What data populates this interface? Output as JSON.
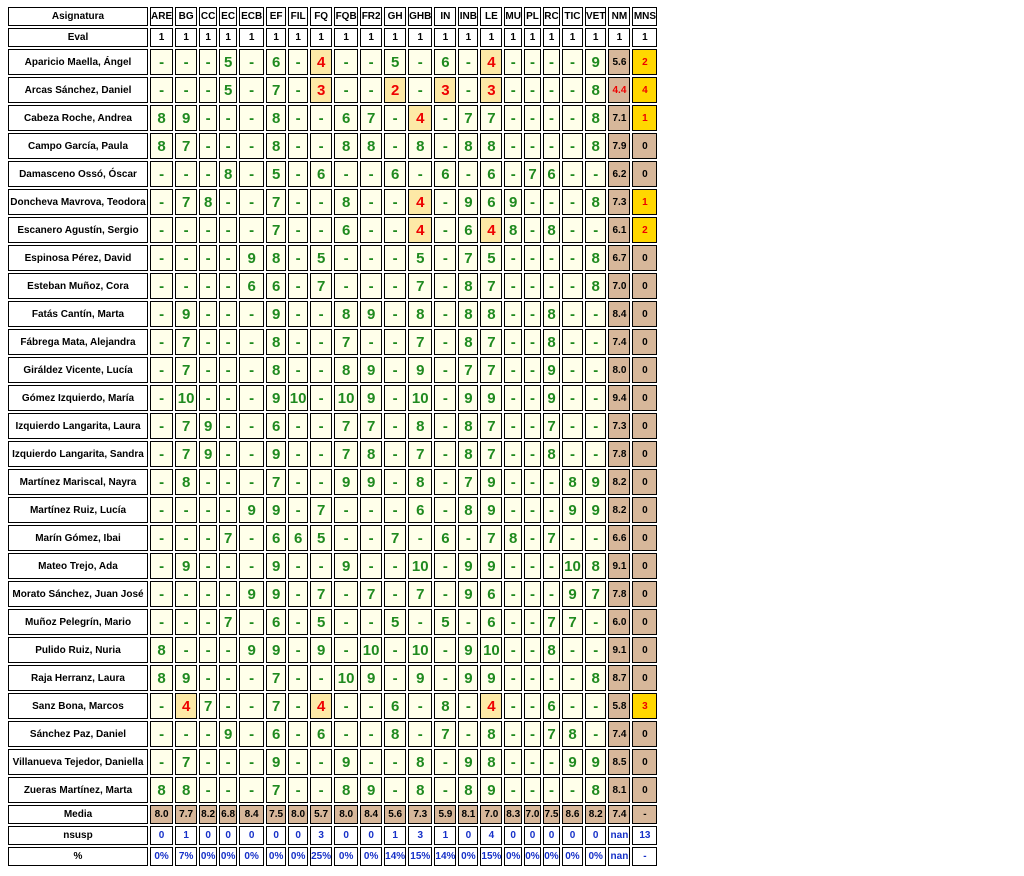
{
  "table": {
    "header_label": "Asignatura",
    "subjects": [
      "ARE",
      "BG",
      "CC",
      "EC",
      "ECB",
      "EF",
      "FIL",
      "FQ",
      "FQB",
      "FR2",
      "GH",
      "GHB",
      "IN",
      "INB",
      "LE",
      "MU",
      "PL",
      "RC",
      "TIC",
      "VET"
    ],
    "summary_headers": [
      "NM",
      "MNS"
    ],
    "eval_label": "Eval",
    "eval_values": [
      "1",
      "1",
      "1",
      "1",
      "1",
      "1",
      "1",
      "1",
      "1",
      "1",
      "1",
      "1",
      "1",
      "1",
      "1",
      "1",
      "1",
      "1",
      "1",
      "1",
      "1",
      "1"
    ],
    "students": [
      {
        "name": "Aparicio Maella, Ángel",
        "grades": [
          "-",
          "-",
          "-",
          "5",
          "-",
          "6",
          "-",
          "4",
          "-",
          "-",
          "5",
          "-",
          "6",
          "-",
          "4",
          "-",
          "-",
          "-",
          "-",
          "9"
        ],
        "nm": "5.6",
        "mns": "2"
      },
      {
        "name": "Arcas Sánchez, Daniel",
        "grades": [
          "-",
          "-",
          "-",
          "5",
          "-",
          "7",
          "-",
          "3",
          "-",
          "-",
          "2",
          "-",
          "3",
          "-",
          "3",
          "-",
          "-",
          "-",
          "-",
          "8"
        ],
        "nm": "4.4",
        "mns": "4"
      },
      {
        "name": "Cabeza Roche, Andrea",
        "grades": [
          "8",
          "9",
          "-",
          "-",
          "-",
          "8",
          "-",
          "-",
          "6",
          "7",
          "-",
          "4",
          "-",
          "7",
          "7",
          "-",
          "-",
          "-",
          "-",
          "8"
        ],
        "nm": "7.1",
        "mns": "1"
      },
      {
        "name": "Campo García, Paula",
        "grades": [
          "8",
          "7",
          "-",
          "-",
          "-",
          "8",
          "-",
          "-",
          "8",
          "8",
          "-",
          "8",
          "-",
          "8",
          "8",
          "-",
          "-",
          "-",
          "-",
          "8"
        ],
        "nm": "7.9",
        "mns": "0"
      },
      {
        "name": "Damasceno Ossó, Óscar",
        "grades": [
          "-",
          "-",
          "-",
          "8",
          "-",
          "5",
          "-",
          "6",
          "-",
          "-",
          "6",
          "-",
          "6",
          "-",
          "6",
          "-",
          "7",
          "6",
          "-",
          "-"
        ],
        "nm": "6.2",
        "mns": "0"
      },
      {
        "name": "Doncheva Mavrova, Teodora",
        "grades": [
          "-",
          "7",
          "8",
          "-",
          "-",
          "7",
          "-",
          "-",
          "8",
          "-",
          "-",
          "4",
          "-",
          "9",
          "6",
          "9",
          "-",
          "-",
          "-",
          "8"
        ],
        "nm": "7.3",
        "mns": "1"
      },
      {
        "name": "Escanero Agustín, Sergio",
        "grades": [
          "-",
          "-",
          "-",
          "-",
          "-",
          "7",
          "-",
          "-",
          "6",
          "-",
          "-",
          "4",
          "-",
          "6",
          "4",
          "8",
          "-",
          "8",
          "-",
          "-"
        ],
        "nm": "6.1",
        "mns": "2"
      },
      {
        "name": "Espinosa Pérez, David",
        "grades": [
          "-",
          "-",
          "-",
          "-",
          "9",
          "8",
          "-",
          "5",
          "-",
          "-",
          "-",
          "5",
          "-",
          "7",
          "5",
          "-",
          "-",
          "-",
          "-",
          "8"
        ],
        "nm": "6.7",
        "mns": "0"
      },
      {
        "name": "Esteban Muñoz, Cora",
        "grades": [
          "-",
          "-",
          "-",
          "-",
          "6",
          "6",
          "-",
          "7",
          "-",
          "-",
          "-",
          "7",
          "-",
          "8",
          "7",
          "-",
          "-",
          "-",
          "-",
          "8"
        ],
        "nm": "7.0",
        "mns": "0"
      },
      {
        "name": "Fatás Cantín, Marta",
        "grades": [
          "-",
          "9",
          "-",
          "-",
          "-",
          "9",
          "-",
          "-",
          "8",
          "9",
          "-",
          "8",
          "-",
          "8",
          "8",
          "-",
          "-",
          "8",
          "-",
          "-"
        ],
        "nm": "8.4",
        "mns": "0"
      },
      {
        "name": "Fábrega Mata, Alejandra",
        "grades": [
          "-",
          "7",
          "-",
          "-",
          "-",
          "8",
          "-",
          "-",
          "7",
          "-",
          "-",
          "7",
          "-",
          "8",
          "7",
          "-",
          "-",
          "8",
          "-",
          "-"
        ],
        "nm": "7.4",
        "mns": "0"
      },
      {
        "name": "Giráldez Vicente, Lucía",
        "grades": [
          "-",
          "7",
          "-",
          "-",
          "-",
          "8",
          "-",
          "-",
          "8",
          "9",
          "-",
          "9",
          "-",
          "7",
          "7",
          "-",
          "-",
          "9",
          "-",
          "-"
        ],
        "nm": "8.0",
        "mns": "0"
      },
      {
        "name": "Gómez Izquierdo, María",
        "grades": [
          "-",
          "10",
          "-",
          "-",
          "-",
          "9",
          "10",
          "-",
          "10",
          "9",
          "-",
          "10",
          "-",
          "9",
          "9",
          "-",
          "-",
          "9",
          "-",
          "-"
        ],
        "nm": "9.4",
        "mns": "0"
      },
      {
        "name": "Izquierdo Langarita, Laura",
        "grades": [
          "-",
          "7",
          "9",
          "-",
          "-",
          "6",
          "-",
          "-",
          "7",
          "7",
          "-",
          "8",
          "-",
          "8",
          "7",
          "-",
          "-",
          "7",
          "-",
          "-"
        ],
        "nm": "7.3",
        "mns": "0"
      },
      {
        "name": "Izquierdo Langarita, Sandra",
        "grades": [
          "-",
          "7",
          "9",
          "-",
          "-",
          "9",
          "-",
          "-",
          "7",
          "8",
          "-",
          "7",
          "-",
          "8",
          "7",
          "-",
          "-",
          "8",
          "-",
          "-"
        ],
        "nm": "7.8",
        "mns": "0"
      },
      {
        "name": "Martínez Mariscal, Nayra",
        "grades": [
          "-",
          "8",
          "-",
          "-",
          "-",
          "7",
          "-",
          "-",
          "9",
          "9",
          "-",
          "8",
          "-",
          "7",
          "9",
          "-",
          "-",
          "-",
          "8",
          "9"
        ],
        "nm": "8.2",
        "mns": "0"
      },
      {
        "name": "Martínez Ruiz, Lucía",
        "grades": [
          "-",
          "-",
          "-",
          "-",
          "9",
          "9",
          "-",
          "7",
          "-",
          "-",
          "-",
          "6",
          "-",
          "8",
          "9",
          "-",
          "-",
          "-",
          "9",
          "9"
        ],
        "nm": "8.2",
        "mns": "0"
      },
      {
        "name": "Marín Gómez, Ibai",
        "grades": [
          "-",
          "-",
          "-",
          "7",
          "-",
          "6",
          "6",
          "5",
          "-",
          "-",
          "7",
          "-",
          "6",
          "-",
          "7",
          "8",
          "-",
          "7",
          "-",
          "-"
        ],
        "nm": "6.6",
        "mns": "0"
      },
      {
        "name": "Mateo Trejo, Ada",
        "grades": [
          "-",
          "9",
          "-",
          "-",
          "-",
          "9",
          "-",
          "-",
          "9",
          "-",
          "-",
          "10",
          "-",
          "9",
          "9",
          "-",
          "-",
          "-",
          "10",
          "8"
        ],
        "nm": "9.1",
        "mns": "0"
      },
      {
        "name": "Morato Sánchez, Juan José",
        "grades": [
          "-",
          "-",
          "-",
          "-",
          "9",
          "9",
          "-",
          "7",
          "-",
          "7",
          "-",
          "7",
          "-",
          "9",
          "6",
          "-",
          "-",
          "-",
          "9",
          "7"
        ],
        "nm": "7.8",
        "mns": "0"
      },
      {
        "name": "Muñoz Pelegrín, Mario",
        "grades": [
          "-",
          "-",
          "-",
          "7",
          "-",
          "6",
          "-",
          "5",
          "-",
          "-",
          "5",
          "-",
          "5",
          "-",
          "6",
          "-",
          "-",
          "7",
          "7",
          "-"
        ],
        "nm": "6.0",
        "mns": "0"
      },
      {
        "name": "Pulido Ruiz, Nuria",
        "grades": [
          "8",
          "-",
          "-",
          "-",
          "9",
          "9",
          "-",
          "9",
          "-",
          "10",
          "-",
          "10",
          "-",
          "9",
          "10",
          "-",
          "-",
          "8",
          "-",
          "-"
        ],
        "nm": "9.1",
        "mns": "0"
      },
      {
        "name": "Raja Herranz, Laura",
        "grades": [
          "8",
          "9",
          "-",
          "-",
          "-",
          "7",
          "-",
          "-",
          "10",
          "9",
          "-",
          "9",
          "-",
          "9",
          "9",
          "-",
          "-",
          "-",
          "-",
          "8"
        ],
        "nm": "8.7",
        "mns": "0"
      },
      {
        "name": "Sanz Bona, Marcos",
        "grades": [
          "-",
          "4",
          "7",
          "-",
          "-",
          "7",
          "-",
          "4",
          "-",
          "-",
          "6",
          "-",
          "8",
          "-",
          "4",
          "-",
          "-",
          "6",
          "-",
          "-"
        ],
        "nm": "5.8",
        "mns": "3"
      },
      {
        "name": "Sánchez Paz, Daniel",
        "grades": [
          "-",
          "-",
          "-",
          "9",
          "-",
          "6",
          "-",
          "6",
          "-",
          "-",
          "8",
          "-",
          "7",
          "-",
          "8",
          "-",
          "-",
          "7",
          "8",
          "-"
        ],
        "nm": "7.4",
        "mns": "0"
      },
      {
        "name": "Villanueva Tejedor, Daniella",
        "grades": [
          "-",
          "7",
          "-",
          "-",
          "-",
          "9",
          "-",
          "-",
          "9",
          "-",
          "-",
          "8",
          "-",
          "9",
          "8",
          "-",
          "-",
          "-",
          "9",
          "9"
        ],
        "nm": "8.5",
        "mns": "0"
      },
      {
        "name": "Zueras Martínez, Marta",
        "grades": [
          "8",
          "8",
          "-",
          "-",
          "-",
          "7",
          "-",
          "-",
          "8",
          "9",
          "-",
          "8",
          "-",
          "8",
          "9",
          "-",
          "-",
          "-",
          "-",
          "8"
        ],
        "nm": "8.1",
        "mns": "0"
      }
    ],
    "media_label": "Media",
    "media_values": [
      "8.0",
      "7.7",
      "8.2",
      "6.8",
      "8.4",
      "7.5",
      "8.0",
      "5.7",
      "8.0",
      "8.4",
      "5.6",
      "7.3",
      "5.9",
      "8.1",
      "7.0",
      "8.3",
      "7.0",
      "7.5",
      "8.6",
      "8.2",
      "7.4",
      "-"
    ],
    "nsusp_label": "nsusp",
    "nsusp_values": [
      "0",
      "1",
      "0",
      "0",
      "0",
      "0",
      "0",
      "3",
      "0",
      "0",
      "1",
      "3",
      "1",
      "0",
      "4",
      "0",
      "0",
      "0",
      "0",
      "0",
      "nan",
      "13"
    ],
    "pct_label": "%",
    "pct_values": [
      "0%",
      "7%",
      "0%",
      "0%",
      "0%",
      "0%",
      "0%",
      "25%",
      "0%",
      "0%",
      "14%",
      "15%",
      "14%",
      "0%",
      "15%",
      "0%",
      "0%",
      "0%",
      "0%",
      "0%",
      "nan",
      "-"
    ]
  },
  "colors": {
    "pass_text": "#1f8a1f",
    "fail_text": "#ee0000",
    "pass_bg": "#ffffea",
    "fail_bg": "#fde9a6",
    "summary_bg": "#d7b79a",
    "mns_fail_bg": "#ffd700",
    "footer_text": "#1530c8"
  }
}
